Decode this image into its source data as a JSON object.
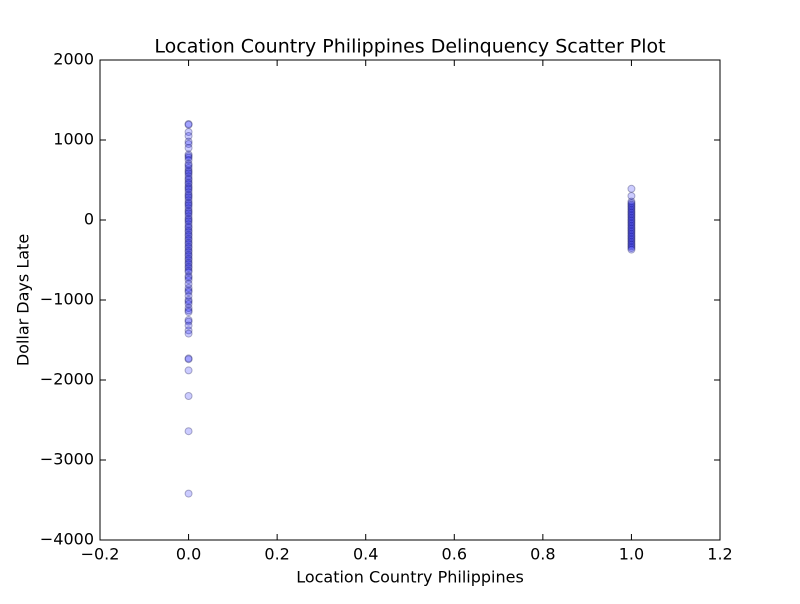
{
  "chart_data": {
    "type": "scatter",
    "title": "Location Country Philippines Delinquency Scatter Plot",
    "x_label": "Location Country Philippines",
    "y_label": "Dollar Days Late",
    "color": "#0000ff",
    "xlim": [
      -0.2,
      1.2
    ],
    "ylim": [
      -4000,
      2000
    ],
    "xticks": [
      {
        "value": -0.2,
        "label": "−0.2"
      },
      {
        "value": 0.0,
        "label": "0.0"
      },
      {
        "value": 0.2,
        "label": "0.2"
      },
      {
        "value": 0.4,
        "label": "0.4"
      },
      {
        "value": 0.6,
        "label": "0.6"
      },
      {
        "value": 0.8,
        "label": "0.8"
      },
      {
        "value": 1.0,
        "label": "1.0"
      },
      {
        "value": 1.2,
        "label": "1.2"
      }
    ],
    "yticks": [
      {
        "value": -4000,
        "label": "−4000"
      },
      {
        "value": -3000,
        "label": "−3000"
      },
      {
        "value": -2000,
        "label": "−2000"
      },
      {
        "value": -1000,
        "label": "−1000"
      },
      0,
      1000,
      2000
    ],
    "x": [
      0,
      0,
      0,
      0,
      0,
      0,
      0,
      0,
      0,
      0,
      0,
      0,
      0,
      0,
      0,
      0,
      0,
      0,
      0,
      0,
      0,
      0,
      0,
      0,
      0,
      0,
      0,
      0,
      0,
      0,
      0,
      0,
      0,
      0,
      0,
      0,
      0,
      0,
      0,
      0,
      0,
      0,
      0,
      0,
      0,
      0,
      0,
      0,
      0,
      0,
      0,
      0,
      0,
      0,
      0,
      0,
      0,
      0,
      0,
      0,
      0,
      0,
      0,
      0,
      0,
      0,
      0,
      0,
      0,
      0,
      0,
      0,
      0,
      0,
      0,
      0,
      0,
      0,
      0,
      0,
      0,
      0,
      0,
      0,
      0,
      0,
      0,
      0,
      0,
      0,
      0,
      1,
      1,
      1,
      1,
      1,
      1,
      1,
      1,
      1,
      1,
      1,
      1,
      1,
      1,
      1,
      1,
      1,
      1,
      1,
      1,
      1,
      1,
      1,
      1,
      1,
      1,
      1,
      1,
      1,
      1,
      1,
      1,
      1
    ],
    "values": [
      1200,
      1190,
      1100,
      1050,
      980,
      950,
      900,
      820,
      800,
      780,
      750,
      700,
      680,
      650,
      620,
      600,
      580,
      550,
      520,
      500,
      470,
      450,
      420,
      400,
      380,
      350,
      320,
      300,
      280,
      250,
      220,
      200,
      180,
      150,
      120,
      100,
      80,
      50,
      20,
      0,
      -20,
      -50,
      -80,
      -100,
      -130,
      -150,
      -180,
      -200,
      -230,
      -250,
      -280,
      -300,
      -330,
      -350,
      -380,
      -400,
      -430,
      -450,
      -480,
      -500,
      -530,
      -550,
      -580,
      -600,
      -630,
      -650,
      -700,
      -720,
      -750,
      -800,
      -850,
      -880,
      -900,
      -950,
      -1000,
      -1020,
      -1050,
      -1100,
      -1130,
      -1150,
      -1250,
      -1270,
      -1320,
      -1380,
      -1420,
      -1730,
      -1740,
      -1880,
      -2200,
      -2640,
      -3420,
      390,
      300,
      230,
      210,
      190,
      170,
      150,
      130,
      110,
      90,
      70,
      50,
      30,
      10,
      -10,
      -30,
      -50,
      -70,
      -90,
      -110,
      -130,
      -150,
      -170,
      -190,
      -210,
      -230,
      -250,
      -270,
      -290,
      -310,
      -330,
      -350,
      -370
    ]
  }
}
